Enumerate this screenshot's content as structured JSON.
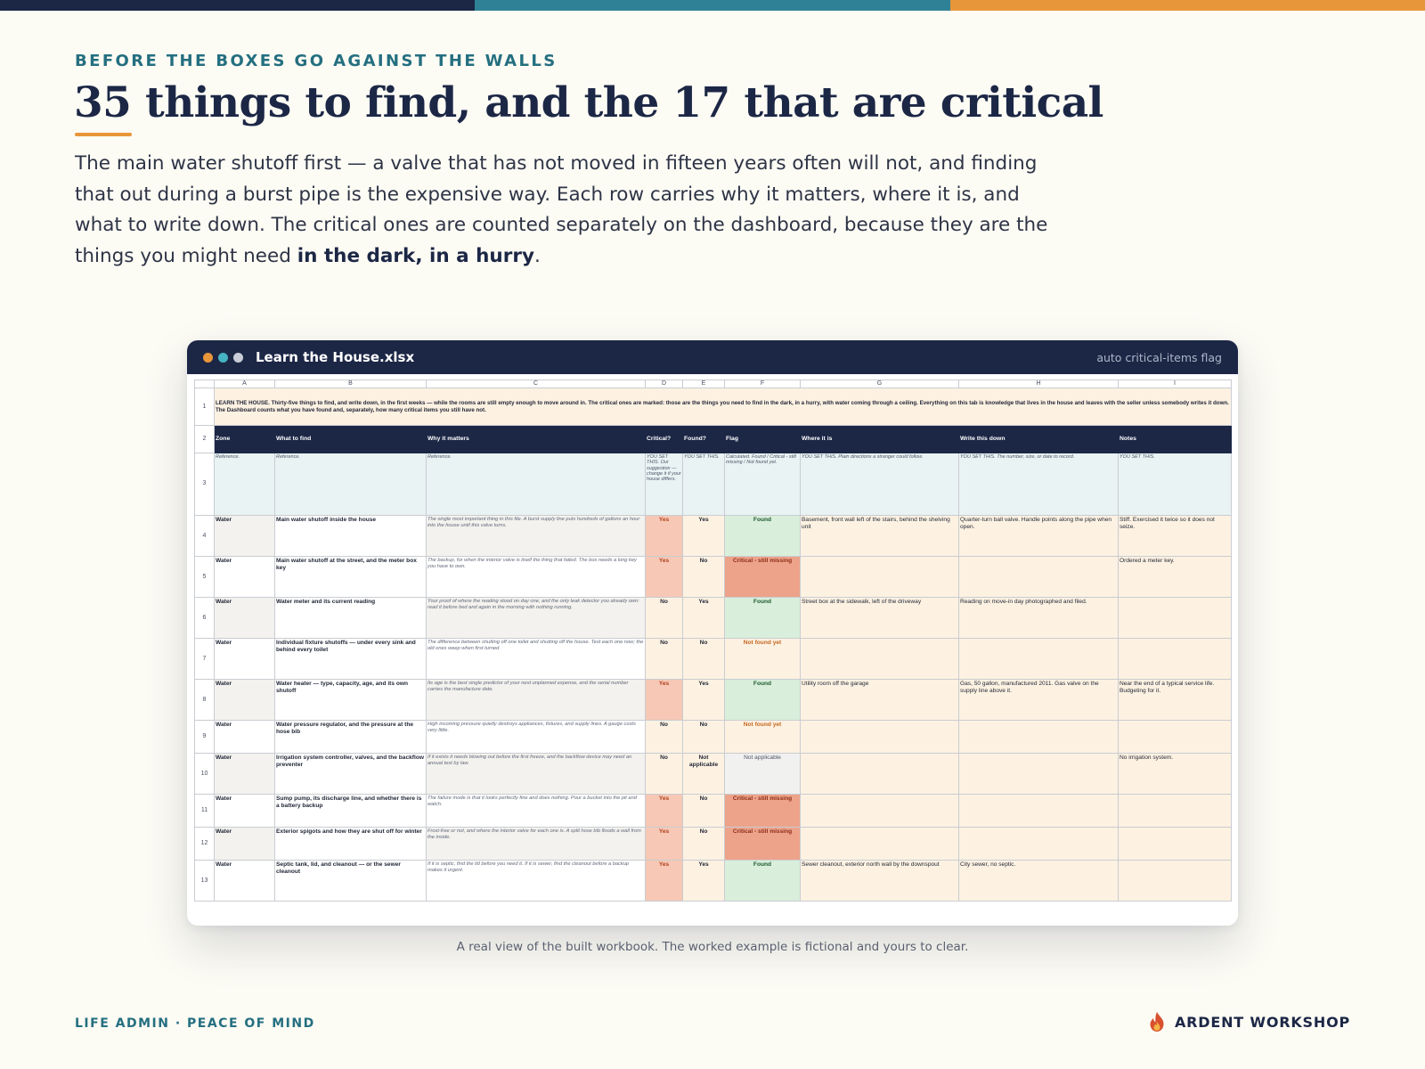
{
  "colors": {
    "navy": "#1c2746",
    "teal": "#2f8296",
    "orange": "#e8963a",
    "critical_yes": "#f6c8b5",
    "flag_found": "#d9eedb",
    "flag_missing": "#eda38a"
  },
  "header": {
    "eyebrow": "BEFORE THE BOXES GO AGAINST THE WALLS",
    "title": "35 things to find, and the 17 that are critical",
    "lede_text": "The main water shutoff first — a valve that has not moved in fifteen years often will not, and finding that out during a burst pipe is the expensive way. Each row carries why it matters, where it is, and what to write down. The critical ones are counted separately on the dashboard, because they are the things you might need ",
    "lede_bold": "in the dark, in a hurry",
    "lede_end": "."
  },
  "window": {
    "title": "Learn the House.xlsx",
    "tag": "auto critical-items flag",
    "dot_colors": [
      "#e8963a",
      "#46b3c2",
      "#c9cdd8"
    ],
    "window_control_icons": [
      "orange-dot-icon",
      "teal-dot-icon",
      "grey-dot-icon"
    ]
  },
  "sheet": {
    "columns": [
      "A",
      "B",
      "C",
      "D",
      "E",
      "F",
      "G",
      "H",
      "I"
    ],
    "banner": "LEARN THE HOUSE. Thirty-five things to find, and write down, in the first weeks — while the rooms are still empty enough to move around in. The critical ones are marked: those are the things you need to find in the dark, in a hurry, with water coming through a ceiling. Everything on this tab is knowledge that lives in the house and leaves with the seller unless somebody writes it down. The Dashboard counts what you have found and, separately, how many critical items you still have not.",
    "headers": [
      "Zone",
      "What to find",
      "Why it matters",
      "Critical?",
      "Found?",
      "Flag",
      "Where it is",
      "Write this down",
      "Notes"
    ],
    "notes": [
      "Reference.",
      "Reference.",
      "Reference.",
      "YOU SET THIS. Our suggestion — change it if your house differs.",
      "YOU SET THIS.",
      "Calculated. Found / Critical - still missing / Not found yet.",
      "YOU SET THIS. Plain directions a stranger could follow.",
      "YOU SET THIS. The number, size, or date to record.",
      "YOU SET THIS."
    ],
    "rows": [
      {
        "zone": "Water",
        "what": "Main water shutoff inside the house",
        "why": "The single most important thing in this file. A burst supply line puts hundreds of gallons an hour into the house until this valve turns.",
        "critical": "Yes",
        "found": "Yes",
        "flag": "Found",
        "where": "Basement, front wall left of the stairs, behind the shelving unit",
        "write": "Quarter-turn ball valve. Handle points along the pipe when open.",
        "notes": "Stiff. Exercised it twice so it does not seize."
      },
      {
        "zone": "Water",
        "what": "Main water shutoff at the street, and the meter box key",
        "why": "The backup, for when the interior valve is itself the thing that failed. The box needs a long key you have to own.",
        "critical": "Yes",
        "found": "No",
        "flag": "Critical - still missing",
        "where": "",
        "write": "",
        "notes": "Ordered a meter key."
      },
      {
        "zone": "Water",
        "what": "Water meter and its current reading",
        "why": "Your proof of where the reading stood on day one, and the only leak detector you already own: read it before bed and again in the morning with nothing running.",
        "critical": "No",
        "found": "Yes",
        "flag": "Found",
        "where": "Street box at the sidewalk, left of the driveway",
        "write": "Reading on move-in day photographed and filed.",
        "notes": ""
      },
      {
        "zone": "Water",
        "what": "Individual fixture shutoffs — under every sink and behind every toilet",
        "why": "The difference between shutting off one toilet and shutting off the house. Test each one now; the old ones weep when first turned.",
        "critical": "No",
        "found": "No",
        "flag": "Not found yet",
        "where": "",
        "write": "",
        "notes": ""
      },
      {
        "zone": "Water",
        "what": "Water heater — type, capacity, age, and its own shutoff",
        "why": "Its age is the best single predictor of your next unplanned expense, and the serial number carries the manufacture date.",
        "critical": "Yes",
        "found": "Yes",
        "flag": "Found",
        "where": "Utility room off the garage",
        "write": "Gas, 50 gallon, manufactured 2011. Gas valve on the supply line above it.",
        "notes": "Near the end of a typical service life. Budgeting for it."
      },
      {
        "zone": "Water",
        "what": "Water pressure regulator, and the pressure at the hose bib",
        "why": "High incoming pressure quietly destroys appliances, fixtures, and supply lines. A gauge costs very little.",
        "critical": "No",
        "found": "No",
        "flag": "Not found yet",
        "where": "",
        "write": "",
        "notes": ""
      },
      {
        "zone": "Water",
        "what": "Irrigation system controller, valves, and the backflow preventer",
        "why": "If it exists it needs blowing out before the first freeze, and the backflow device may need an annual test by law.",
        "critical": "No",
        "found": "Not applicable",
        "flag": "Not applicable",
        "where": "",
        "write": "",
        "notes": "No irrigation system."
      },
      {
        "zone": "Water",
        "what": "Sump pump, its discharge line, and whether there is a battery backup",
        "why": "The failure mode is that it looks perfectly fine and does nothing. Pour a bucket into the pit and watch.",
        "critical": "Yes",
        "found": "No",
        "flag": "Critical - still missing",
        "where": "",
        "write": "",
        "notes": ""
      },
      {
        "zone": "Water",
        "what": "Exterior spigots and how they are shut off for winter",
        "why": "Frost-free or not, and where the interior valve for each one is. A split hose bib floods a wall from the inside.",
        "critical": "Yes",
        "found": "No",
        "flag": "Critical - still missing",
        "where": "",
        "write": "",
        "notes": ""
      },
      {
        "zone": "Water",
        "what": "Septic tank, lid, and cleanout — or the sewer cleanout",
        "why": "If it is septic, find the lid before you need it. If it is sewer, find the cleanout before a backup makes it urgent.",
        "critical": "Yes",
        "found": "Yes",
        "flag": "Found",
        "where": "Sewer cleanout, exterior north wall by the downspout",
        "write": "City sewer, no septic.",
        "notes": ""
      }
    ]
  },
  "caption": "A real view of the built workbook. The worked example is fictional and yours to clear.",
  "footer": {
    "left": "LIFE ADMIN · PEACE OF MIND",
    "brand": "ARDENT WORKSHOP",
    "brand_icon": "flame-icon"
  }
}
